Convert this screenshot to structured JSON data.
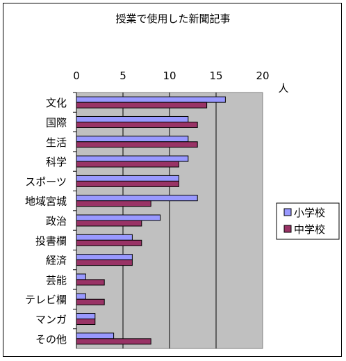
{
  "chart_data": {
    "type": "bar",
    "orientation": "horizontal",
    "title": "授業で使用した新聞記事",
    "xlabel": "人",
    "ylabel": "",
    "xlim": [
      0,
      20
    ],
    "xticks": [
      0,
      5,
      10,
      15,
      20
    ],
    "grid": true,
    "legend": "right",
    "categories": [
      "文化",
      "国際",
      "生活",
      "科学",
      "スポーツ",
      "地域宮城",
      "政治",
      "投書欄",
      "経済",
      "芸能",
      "テレビ欄",
      "マンガ",
      "その他"
    ],
    "series": [
      {
        "name": "小学校",
        "color": "#9999ff",
        "values": [
          16,
          12,
          12,
          12,
          11,
          13,
          9,
          6,
          6,
          1,
          1,
          2,
          4
        ]
      },
      {
        "name": "中学校",
        "color": "#993366",
        "values": [
          14,
          13,
          13,
          11,
          11,
          8,
          7,
          7,
          6,
          3,
          3,
          2,
          8
        ]
      }
    ],
    "plot_background": "#c0c0c0"
  }
}
